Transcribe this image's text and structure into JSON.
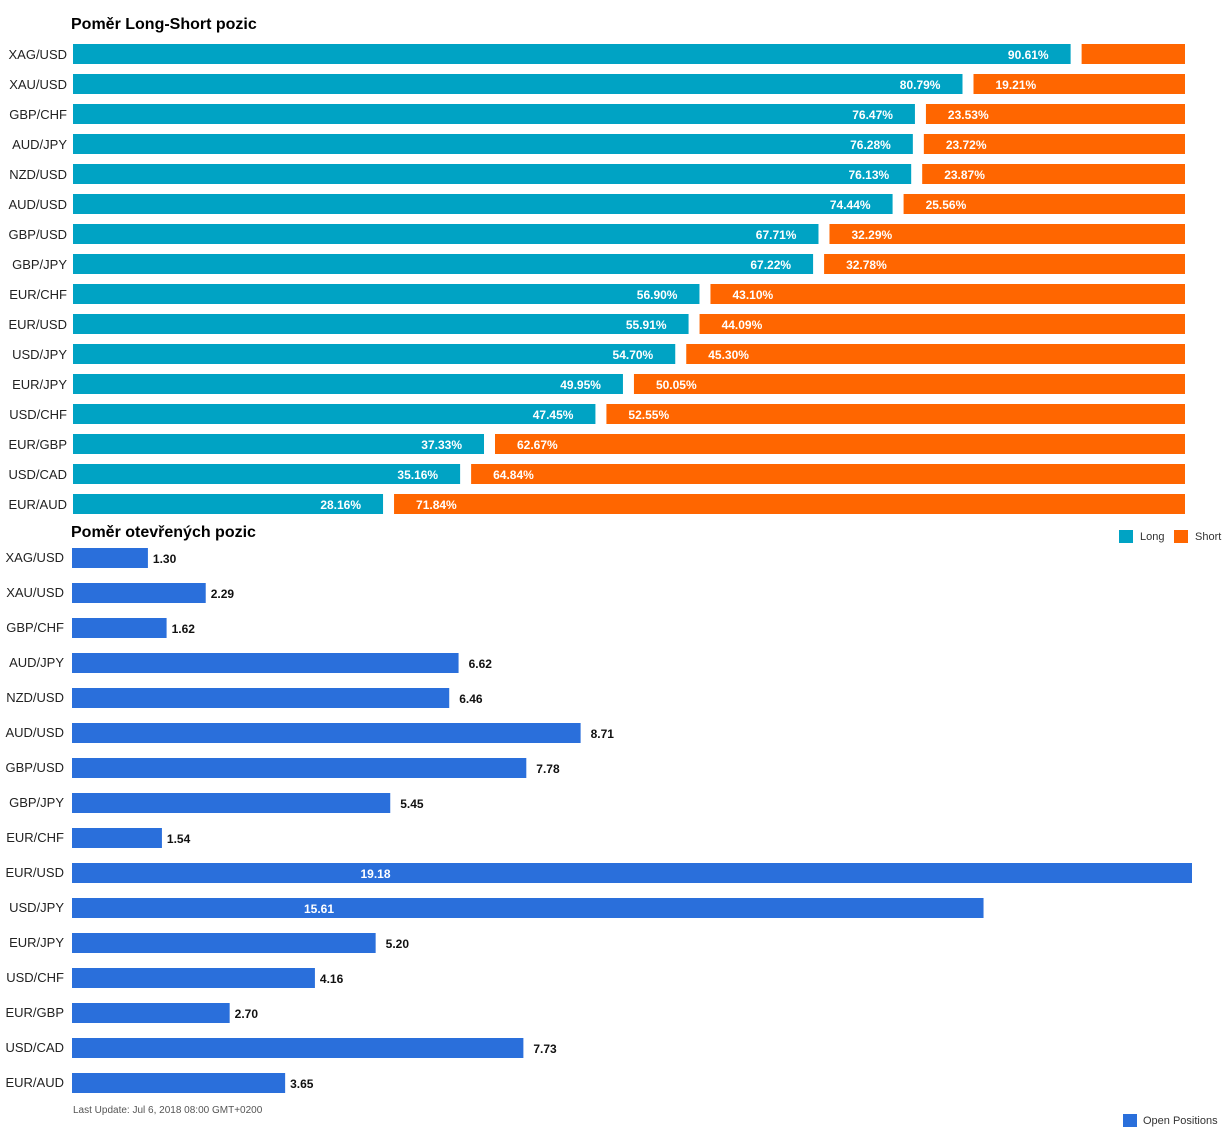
{
  "chart_data": [
    {
      "type": "bar",
      "orientation": "horizontal",
      "stacked": "percent",
      "title": "Poměr Long-Short pozic",
      "categories": [
        "XAG/USD",
        "XAU/USD",
        "GBP/CHF",
        "AUD/JPY",
        "NZD/USD",
        "AUD/USD",
        "GBP/USD",
        "GBP/JPY",
        "EUR/CHF",
        "EUR/USD",
        "USD/JPY",
        "EUR/JPY",
        "USD/CHF",
        "EUR/GBP",
        "USD/CAD",
        "EUR/AUD"
      ],
      "series": [
        {
          "name": "Long",
          "color": "#00a3c4",
          "values": [
            90.61,
            80.79,
            76.47,
            76.28,
            76.13,
            74.44,
            67.71,
            67.22,
            56.9,
            55.91,
            54.7,
            49.95,
            47.45,
            37.33,
            35.16,
            28.16
          ],
          "labels": [
            "90.61%",
            "80.79%",
            "76.47%",
            "76.28%",
            "76.13%",
            "74.44%",
            "67.71%",
            "67.22%",
            "56.90%",
            "55.91%",
            "54.70%",
            "49.95%",
            "47.45%",
            "37.33%",
            "35.16%",
            "28.16%"
          ]
        },
        {
          "name": "Short",
          "color": "#ff6600",
          "values": [
            9.39,
            19.21,
            23.53,
            23.72,
            23.87,
            25.56,
            32.29,
            32.78,
            43.1,
            44.09,
            45.3,
            50.05,
            52.55,
            62.67,
            64.84,
            71.84
          ],
          "labels": [
            "",
            "19.21%",
            "23.53%",
            "23.72%",
            "23.87%",
            "25.56%",
            "32.29%",
            "32.78%",
            "43.10%",
            "44.09%",
            "45.30%",
            "50.05%",
            "52.55%",
            "62.67%",
            "64.84%",
            "71.84%"
          ]
        }
      ],
      "legend": "bottom-right"
    },
    {
      "type": "bar",
      "orientation": "horizontal",
      "title": "Poměr otevřených pozic",
      "categories": [
        "XAG/USD",
        "XAU/USD",
        "GBP/CHF",
        "AUD/JPY",
        "NZD/USD",
        "AUD/USD",
        "GBP/USD",
        "GBP/JPY",
        "EUR/CHF",
        "EUR/USD",
        "USD/JPY",
        "EUR/JPY",
        "USD/CHF",
        "EUR/GBP",
        "USD/CAD",
        "EUR/AUD"
      ],
      "series": [
        {
          "name": "Open Positions",
          "color": "#2a6fdb",
          "values": [
            1.3,
            2.29,
            1.62,
            6.62,
            6.46,
            8.71,
            7.78,
            5.45,
            1.54,
            19.18,
            15.61,
            5.2,
            4.16,
            2.7,
            7.73,
            3.65
          ],
          "labels": [
            "1.30",
            "2.29",
            "1.62",
            "6.62",
            "6.46",
            "8.71",
            "7.78",
            "5.45",
            "1.54",
            "19.18",
            "15.61",
            "5.20",
            "4.16",
            "2.70",
            "7.73",
            "3.65"
          ]
        }
      ],
      "xlim": [
        0,
        19.18
      ],
      "legend": "bottom-right"
    }
  ],
  "footer": {
    "last_update": "Last Update: Jul 6, 2018 08:00 GMT+0200"
  }
}
